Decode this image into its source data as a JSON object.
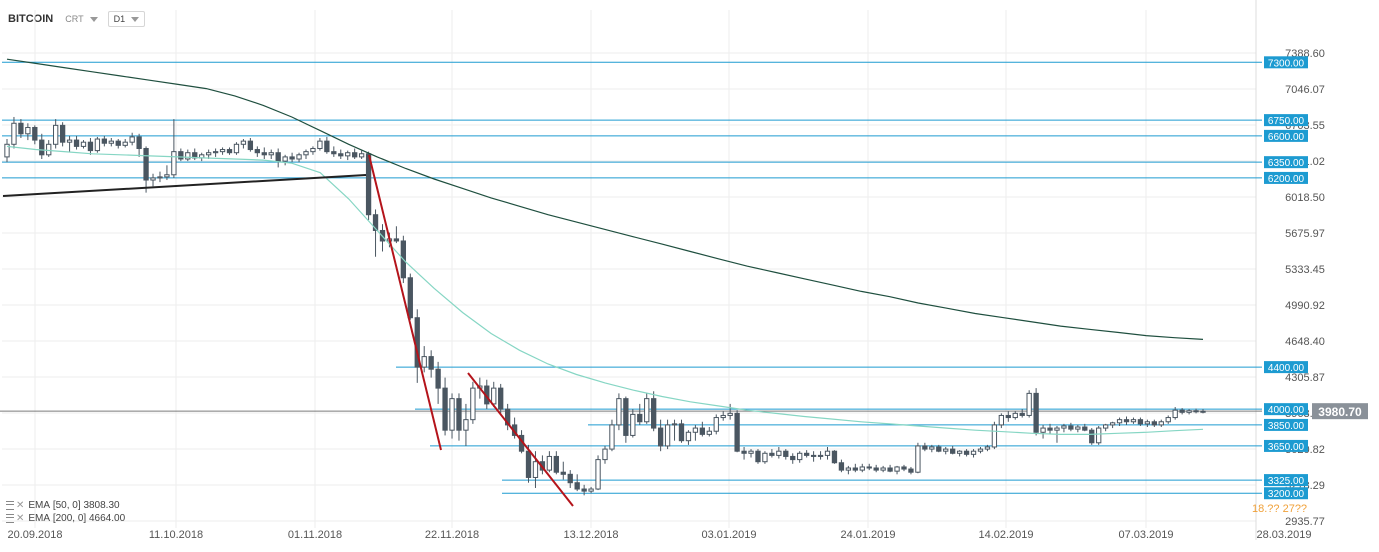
{
  "toolbar": {
    "symbol": "BITCOIN",
    "chart_type": "CRT",
    "interval": "D1"
  },
  "indicators": [
    {
      "label": "EMA",
      "params": "[50, 0]",
      "value": "3808.30"
    },
    {
      "label": "EMA",
      "params": "[200, 0]",
      "value": "4664.00"
    }
  ],
  "current_price_label": "3980.70",
  "crosshair_date_partial": "18.?? 27??",
  "colors": {
    "up_candle": "#ffffff",
    "down_candle": "#4a5661",
    "level_line": "#1d9bd1",
    "level_label_bg": "#1d9bd1",
    "ema50": "#86d6c4",
    "ema200": "#1f4f3f",
    "trend_red": "#b4141b",
    "trend_black": "#222222",
    "price_tag_bg": "#8a9199",
    "highlight_text": "#f0a13a"
  },
  "chart_data": {
    "type": "candlestick",
    "x_ticks": [
      "20.09.2018",
      "11.10.2018",
      "01.11.2018",
      "22.11.2018",
      "13.12.2018",
      "03.01.2019",
      "24.01.2019",
      "14.02.2019",
      "07.03.2019",
      "28.03.2019"
    ],
    "y_ticks": [
      7388.6,
      7046.07,
      6703.55,
      6361.02,
      6018.5,
      5675.97,
      5333.45,
      4990.92,
      4648.4,
      4305.87,
      3963.35,
      3620.82,
      3278.29,
      2935.77
    ],
    "ylim": [
      2935.77,
      7388.6
    ],
    "horizontal_levels": [
      7300.0,
      6750.0,
      6600.0,
      6350.0,
      6200.0,
      4400.0,
      4000.0,
      3850.0,
      3650.0,
      3325.0,
      3200.0
    ],
    "current_price": 3980.7,
    "candles": [
      {
        "o": 6400,
        "h": 6570,
        "l": 6350,
        "c": 6520
      },
      {
        "o": 6520,
        "h": 6780,
        "l": 6480,
        "c": 6720
      },
      {
        "o": 6720,
        "h": 6760,
        "l": 6580,
        "c": 6620
      },
      {
        "o": 6620,
        "h": 6720,
        "l": 6560,
        "c": 6680
      },
      {
        "o": 6680,
        "h": 6700,
        "l": 6520,
        "c": 6560
      },
      {
        "o": 6560,
        "h": 6620,
        "l": 6380,
        "c": 6420
      },
      {
        "o": 6420,
        "h": 6560,
        "l": 6400,
        "c": 6520
      },
      {
        "o": 6520,
        "h": 6760,
        "l": 6480,
        "c": 6700
      },
      {
        "o": 6700,
        "h": 6730,
        "l": 6500,
        "c": 6540
      },
      {
        "o": 6540,
        "h": 6600,
        "l": 6450,
        "c": 6560
      },
      {
        "o": 6560,
        "h": 6600,
        "l": 6470,
        "c": 6500
      },
      {
        "o": 6500,
        "h": 6560,
        "l": 6480,
        "c": 6540
      },
      {
        "o": 6540,
        "h": 6580,
        "l": 6420,
        "c": 6460
      },
      {
        "o": 6460,
        "h": 6590,
        "l": 6440,
        "c": 6570
      },
      {
        "o": 6570,
        "h": 6600,
        "l": 6500,
        "c": 6530
      },
      {
        "o": 6530,
        "h": 6580,
        "l": 6500,
        "c": 6550
      },
      {
        "o": 6550,
        "h": 6570,
        "l": 6480,
        "c": 6510
      },
      {
        "o": 6510,
        "h": 6570,
        "l": 6490,
        "c": 6540
      },
      {
        "o": 6540,
        "h": 6630,
        "l": 6510,
        "c": 6590
      },
      {
        "o": 6590,
        "h": 6620,
        "l": 6400,
        "c": 6480
      },
      {
        "o": 6480,
        "h": 6500,
        "l": 6060,
        "c": 6180
      },
      {
        "o": 6180,
        "h": 6240,
        "l": 6120,
        "c": 6200
      },
      {
        "o": 6200,
        "h": 6260,
        "l": 6160,
        "c": 6210
      },
      {
        "o": 6210,
        "h": 6320,
        "l": 6180,
        "c": 6230
      },
      {
        "o": 6230,
        "h": 6760,
        "l": 6200,
        "c": 6450
      },
      {
        "o": 6450,
        "h": 6480,
        "l": 6360,
        "c": 6380
      },
      {
        "o": 6380,
        "h": 6470,
        "l": 6360,
        "c": 6440
      },
      {
        "o": 6440,
        "h": 6480,
        "l": 6370,
        "c": 6390
      },
      {
        "o": 6390,
        "h": 6440,
        "l": 6360,
        "c": 6420
      },
      {
        "o": 6420,
        "h": 6470,
        "l": 6380,
        "c": 6440
      },
      {
        "o": 6440,
        "h": 6480,
        "l": 6400,
        "c": 6450
      },
      {
        "o": 6450,
        "h": 6490,
        "l": 6420,
        "c": 6470
      },
      {
        "o": 6470,
        "h": 6490,
        "l": 6420,
        "c": 6440
      },
      {
        "o": 6440,
        "h": 6540,
        "l": 6420,
        "c": 6520
      },
      {
        "o": 6520,
        "h": 6570,
        "l": 6480,
        "c": 6550
      },
      {
        "o": 6550,
        "h": 6580,
        "l": 6450,
        "c": 6470
      },
      {
        "o": 6470,
        "h": 6500,
        "l": 6400,
        "c": 6440
      },
      {
        "o": 6440,
        "h": 6490,
        "l": 6380,
        "c": 6420
      },
      {
        "o": 6420,
        "h": 6470,
        "l": 6380,
        "c": 6440
      },
      {
        "o": 6440,
        "h": 6480,
        "l": 6300,
        "c": 6360
      },
      {
        "o": 6360,
        "h": 6420,
        "l": 6320,
        "c": 6400
      },
      {
        "o": 6400,
        "h": 6440,
        "l": 6350,
        "c": 6380
      },
      {
        "o": 6380,
        "h": 6440,
        "l": 6350,
        "c": 6420
      },
      {
        "o": 6420,
        "h": 6470,
        "l": 6380,
        "c": 6450
      },
      {
        "o": 6450,
        "h": 6500,
        "l": 6420,
        "c": 6480
      },
      {
        "o": 6480,
        "h": 6580,
        "l": 6460,
        "c": 6550
      },
      {
        "o": 6550,
        "h": 6590,
        "l": 6430,
        "c": 6450
      },
      {
        "o": 6450,
        "h": 6500,
        "l": 6400,
        "c": 6430
      },
      {
        "o": 6430,
        "h": 6470,
        "l": 6380,
        "c": 6410
      },
      {
        "o": 6410,
        "h": 6460,
        "l": 6370,
        "c": 6440
      },
      {
        "o": 6440,
        "h": 6480,
        "l": 6380,
        "c": 6400
      },
      {
        "o": 6400,
        "h": 6460,
        "l": 6380,
        "c": 6430
      },
      {
        "o": 6430,
        "h": 6450,
        "l": 5800,
        "c": 5850
      },
      {
        "o": 5850,
        "h": 5900,
        "l": 5450,
        "c": 5700
      },
      {
        "o": 5700,
        "h": 5760,
        "l": 5500,
        "c": 5600
      },
      {
        "o": 5600,
        "h": 5680,
        "l": 5540,
        "c": 5620
      },
      {
        "o": 5620,
        "h": 5740,
        "l": 5580,
        "c": 5600
      },
      {
        "o": 5600,
        "h": 5650,
        "l": 5200,
        "c": 5250
      },
      {
        "o": 5250,
        "h": 5290,
        "l": 4850,
        "c": 4870
      },
      {
        "o": 4870,
        "h": 4950,
        "l": 4250,
        "c": 4400
      },
      {
        "o": 4400,
        "h": 4600,
        "l": 4350,
        "c": 4500
      },
      {
        "o": 4500,
        "h": 4560,
        "l": 4300,
        "c": 4380
      },
      {
        "o": 4380,
        "h": 4450,
        "l": 4050,
        "c": 4200
      },
      {
        "o": 4200,
        "h": 4300,
        "l": 3750,
        "c": 3800
      },
      {
        "o": 3800,
        "h": 4150,
        "l": 3720,
        "c": 4100
      },
      {
        "o": 4100,
        "h": 4150,
        "l": 3700,
        "c": 3800
      },
      {
        "o": 3800,
        "h": 4050,
        "l": 3650,
        "c": 3900
      },
      {
        "o": 3900,
        "h": 4260,
        "l": 3860,
        "c": 4200
      },
      {
        "o": 4200,
        "h": 4300,
        "l": 4100,
        "c": 4220
      },
      {
        "o": 4220,
        "h": 4280,
        "l": 4000,
        "c": 4050
      },
      {
        "o": 4050,
        "h": 4260,
        "l": 4020,
        "c": 4200
      },
      {
        "o": 4200,
        "h": 4240,
        "l": 3960,
        "c": 4000
      },
      {
        "o": 4000,
        "h": 4050,
        "l": 3800,
        "c": 3850
      },
      {
        "o": 3850,
        "h": 3920,
        "l": 3720,
        "c": 3750
      },
      {
        "o": 3750,
        "h": 3800,
        "l": 3580,
        "c": 3600
      },
      {
        "o": 3600,
        "h": 3660,
        "l": 3300,
        "c": 3350
      },
      {
        "o": 3350,
        "h": 3600,
        "l": 3250,
        "c": 3500
      },
      {
        "o": 3500,
        "h": 3560,
        "l": 3380,
        "c": 3420
      },
      {
        "o": 3420,
        "h": 3600,
        "l": 3400,
        "c": 3550
      },
      {
        "o": 3550,
        "h": 3600,
        "l": 3380,
        "c": 3400
      },
      {
        "o": 3400,
        "h": 3500,
        "l": 3330,
        "c": 3380
      },
      {
        "o": 3380,
        "h": 3420,
        "l": 3250,
        "c": 3300
      },
      {
        "o": 3300,
        "h": 3380,
        "l": 3220,
        "c": 3240
      },
      {
        "o": 3240,
        "h": 3280,
        "l": 3180,
        "c": 3220
      },
      {
        "o": 3220,
        "h": 3260,
        "l": 3200,
        "c": 3240
      },
      {
        "o": 3240,
        "h": 3560,
        "l": 3230,
        "c": 3520
      },
      {
        "o": 3520,
        "h": 3650,
        "l": 3480,
        "c": 3620
      },
      {
        "o": 3620,
        "h": 3900,
        "l": 3600,
        "c": 3850
      },
      {
        "o": 3850,
        "h": 4150,
        "l": 3800,
        "c": 4100
      },
      {
        "o": 4100,
        "h": 4120,
        "l": 3680,
        "c": 3750
      },
      {
        "o": 3750,
        "h": 4000,
        "l": 3730,
        "c": 3950
      },
      {
        "o": 3950,
        "h": 4050,
        "l": 3850,
        "c": 3880
      },
      {
        "o": 3880,
        "h": 4150,
        "l": 3860,
        "c": 4100
      },
      {
        "o": 4100,
        "h": 4170,
        "l": 3790,
        "c": 3820
      },
      {
        "o": 3820,
        "h": 3900,
        "l": 3600,
        "c": 3650
      },
      {
        "o": 3650,
        "h": 3900,
        "l": 3620,
        "c": 3850
      },
      {
        "o": 3850,
        "h": 3900,
        "l": 3700,
        "c": 3860
      },
      {
        "o": 3860,
        "h": 3900,
        "l": 3680,
        "c": 3700
      },
      {
        "o": 3700,
        "h": 3800,
        "l": 3660,
        "c": 3780
      },
      {
        "o": 3780,
        "h": 3850,
        "l": 3700,
        "c": 3820
      },
      {
        "o": 3820,
        "h": 3880,
        "l": 3740,
        "c": 3760
      },
      {
        "o": 3760,
        "h": 3830,
        "l": 3740,
        "c": 3790
      },
      {
        "o": 3790,
        "h": 3950,
        "l": 3760,
        "c": 3920
      },
      {
        "o": 3920,
        "h": 3980,
        "l": 3890,
        "c": 3940
      },
      {
        "o": 3940,
        "h": 4050,
        "l": 3900,
        "c": 3960
      },
      {
        "o": 3960,
        "h": 3990,
        "l": 3590,
        "c": 3600
      },
      {
        "o": 3600,
        "h": 3640,
        "l": 3520,
        "c": 3580
      },
      {
        "o": 3580,
        "h": 3620,
        "l": 3540,
        "c": 3600
      },
      {
        "o": 3600,
        "h": 3620,
        "l": 3480,
        "c": 3500
      },
      {
        "o": 3500,
        "h": 3600,
        "l": 3480,
        "c": 3580
      },
      {
        "o": 3580,
        "h": 3620,
        "l": 3540,
        "c": 3560
      },
      {
        "o": 3560,
        "h": 3640,
        "l": 3530,
        "c": 3600
      },
      {
        "o": 3600,
        "h": 3620,
        "l": 3520,
        "c": 3550
      },
      {
        "o": 3550,
        "h": 3580,
        "l": 3480,
        "c": 3520
      },
      {
        "o": 3520,
        "h": 3600,
        "l": 3490,
        "c": 3580
      },
      {
        "o": 3580,
        "h": 3610,
        "l": 3540,
        "c": 3560
      },
      {
        "o": 3560,
        "h": 3600,
        "l": 3500,
        "c": 3550
      },
      {
        "o": 3550,
        "h": 3600,
        "l": 3520,
        "c": 3560
      },
      {
        "o": 3560,
        "h": 3640,
        "l": 3520,
        "c": 3600
      },
      {
        "o": 3600,
        "h": 3610,
        "l": 3480,
        "c": 3490
      },
      {
        "o": 3490,
        "h": 3520,
        "l": 3400,
        "c": 3420
      },
      {
        "o": 3420,
        "h": 3460,
        "l": 3380,
        "c": 3440
      },
      {
        "o": 3440,
        "h": 3480,
        "l": 3400,
        "c": 3420
      },
      {
        "o": 3420,
        "h": 3480,
        "l": 3400,
        "c": 3450
      },
      {
        "o": 3450,
        "h": 3480,
        "l": 3420,
        "c": 3440
      },
      {
        "o": 3440,
        "h": 3470,
        "l": 3400,
        "c": 3420
      },
      {
        "o": 3420,
        "h": 3460,
        "l": 3400,
        "c": 3440
      },
      {
        "o": 3440,
        "h": 3470,
        "l": 3400,
        "c": 3410
      },
      {
        "o": 3410,
        "h": 3460,
        "l": 3380,
        "c": 3450
      },
      {
        "o": 3450,
        "h": 3470,
        "l": 3410,
        "c": 3430
      },
      {
        "o": 3430,
        "h": 3450,
        "l": 3380,
        "c": 3400
      },
      {
        "o": 3400,
        "h": 3680,
        "l": 3390,
        "c": 3650
      },
      {
        "o": 3650,
        "h": 3680,
        "l": 3600,
        "c": 3620
      },
      {
        "o": 3620,
        "h": 3660,
        "l": 3590,
        "c": 3640
      },
      {
        "o": 3640,
        "h": 3660,
        "l": 3590,
        "c": 3600
      },
      {
        "o": 3600,
        "h": 3640,
        "l": 3570,
        "c": 3620
      },
      {
        "o": 3620,
        "h": 3650,
        "l": 3570,
        "c": 3580
      },
      {
        "o": 3580,
        "h": 3610,
        "l": 3550,
        "c": 3600
      },
      {
        "o": 3600,
        "h": 3620,
        "l": 3550,
        "c": 3570
      },
      {
        "o": 3570,
        "h": 3620,
        "l": 3540,
        "c": 3600
      },
      {
        "o": 3600,
        "h": 3640,
        "l": 3580,
        "c": 3620
      },
      {
        "o": 3620,
        "h": 3660,
        "l": 3600,
        "c": 3640
      },
      {
        "o": 3640,
        "h": 3880,
        "l": 3620,
        "c": 3850
      },
      {
        "o": 3850,
        "h": 3960,
        "l": 3820,
        "c": 3940
      },
      {
        "o": 3940,
        "h": 3980,
        "l": 3880,
        "c": 3920
      },
      {
        "o": 3920,
        "h": 3980,
        "l": 3900,
        "c": 3960
      },
      {
        "o": 3960,
        "h": 4000,
        "l": 3920,
        "c": 3940
      },
      {
        "o": 3940,
        "h": 4180,
        "l": 3920,
        "c": 4150
      },
      {
        "o": 4150,
        "h": 4200,
        "l": 3750,
        "c": 3780
      },
      {
        "o": 3780,
        "h": 3850,
        "l": 3720,
        "c": 3820
      },
      {
        "o": 3820,
        "h": 3860,
        "l": 3760,
        "c": 3800
      },
      {
        "o": 3800,
        "h": 3840,
        "l": 3680,
        "c": 3820
      },
      {
        "o": 3820,
        "h": 3860,
        "l": 3780,
        "c": 3840
      },
      {
        "o": 3840,
        "h": 3870,
        "l": 3790,
        "c": 3810
      },
      {
        "o": 3810,
        "h": 3850,
        "l": 3780,
        "c": 3830
      },
      {
        "o": 3830,
        "h": 3860,
        "l": 3790,
        "c": 3800
      },
      {
        "o": 3800,
        "h": 3820,
        "l": 3660,
        "c": 3680
      },
      {
        "o": 3680,
        "h": 3840,
        "l": 3660,
        "c": 3820
      },
      {
        "o": 3820,
        "h": 3860,
        "l": 3790,
        "c": 3850
      },
      {
        "o": 3850,
        "h": 3880,
        "l": 3820,
        "c": 3870
      },
      {
        "o": 3870,
        "h": 3920,
        "l": 3840,
        "c": 3900
      },
      {
        "o": 3900,
        "h": 3930,
        "l": 3850,
        "c": 3880
      },
      {
        "o": 3880,
        "h": 3920,
        "l": 3860,
        "c": 3900
      },
      {
        "o": 3900,
        "h": 3920,
        "l": 3840,
        "c": 3860
      },
      {
        "o": 3860,
        "h": 3900,
        "l": 3830,
        "c": 3880
      },
      {
        "o": 3880,
        "h": 3900,
        "l": 3830,
        "c": 3850
      },
      {
        "o": 3850,
        "h": 3900,
        "l": 3830,
        "c": 3880
      },
      {
        "o": 3880,
        "h": 3940,
        "l": 3860,
        "c": 3920
      },
      {
        "o": 3920,
        "h": 4020,
        "l": 3900,
        "c": 3990
      },
      {
        "o": 3990,
        "h": 4010,
        "l": 3950,
        "c": 3970
      },
      {
        "o": 3970,
        "h": 4000,
        "l": 3950,
        "c": 3985
      },
      {
        "o": 3985,
        "h": 4005,
        "l": 3960,
        "c": 3975
      },
      {
        "o": 3975,
        "h": 4000,
        "l": 3960,
        "c": 3980
      }
    ],
    "ema_50": [
      6500,
      6470,
      6450,
      6430,
      6420,
      6410,
      6400,
      6390,
      6380,
      6370,
      6340,
      6250,
      6000,
      5700,
      5400,
      5150,
      4920,
      4720,
      4560,
      4430,
      4330,
      4250,
      4180,
      4120,
      4070,
      4030,
      3990,
      3960,
      3930,
      3905,
      3880,
      3860,
      3840,
      3820,
      3800,
      3785,
      3770,
      3760,
      3760,
      3770,
      3780,
      3795,
      3808
    ],
    "ema_200": [
      7330,
      7290,
      7250,
      7210,
      7170,
      7130,
      7090,
      7050,
      6980,
      6890,
      6780,
      6650,
      6520,
      6400,
      6290,
      6190,
      6100,
      6010,
      5930,
      5850,
      5780,
      5710,
      5640,
      5570,
      5500,
      5430,
      5360,
      5300,
      5240,
      5180,
      5120,
      5070,
      5010,
      4960,
      4910,
      4870,
      4830,
      4790,
      4760,
      4730,
      4700,
      4680,
      4664
    ]
  }
}
